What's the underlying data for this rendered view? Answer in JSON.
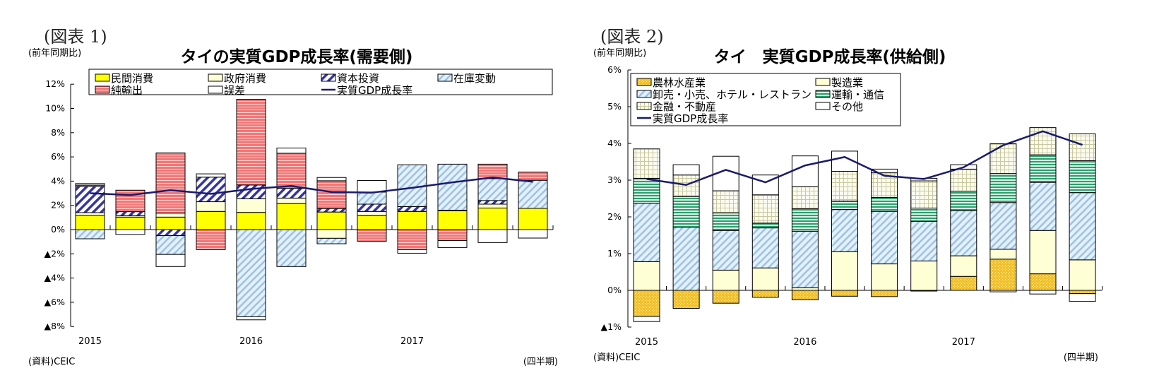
{
  "figures": [
    {
      "label": "(図表 1)"
    },
    {
      "label": "(図表 2)"
    }
  ],
  "chart_data": [
    {
      "type": "bar",
      "stacked": true,
      "title": "タイの実質GDP成長率(需要側)",
      "ylabel": "(前年同期比)",
      "xlabel": "(四半期)",
      "source": "(資料)CEIC",
      "ylim": [
        -8,
        12
      ],
      "yticks": [
        12,
        10,
        8,
        6,
        4,
        2,
        0,
        -2,
        -4,
        -6,
        -8
      ],
      "ytick_labels": [
        "12%",
        "10%",
        "8%",
        "6%",
        "4%",
        "2%",
        "0%",
        "▲2%",
        "▲4%",
        "▲6%",
        "▲8%"
      ],
      "categories": [
        "2015Q1",
        "2015Q2",
        "2015Q3",
        "2015Q4",
        "2016Q1",
        "2016Q2",
        "2016Q3",
        "2016Q4",
        "2017Q1",
        "2017Q2",
        "2017Q3",
        "2017Q4"
      ],
      "year_labels": [
        {
          "index": 0,
          "text": "2015"
        },
        {
          "index": 4,
          "text": "2016"
        },
        {
          "index": 8,
          "text": "2017"
        }
      ],
      "legend_position": "top",
      "series": [
        {
          "name": "民間消費",
          "pattern": "solid-yellow",
          "color": "#ffff00",
          "values": [
            1.17,
            1.03,
            1.03,
            1.5,
            1.42,
            2.15,
            1.45,
            1.15,
            1.5,
            1.55,
            1.78,
            1.75
          ]
        },
        {
          "name": "政府消費",
          "pattern": "solid-cream",
          "color": "#ffffd6",
          "values": [
            0.23,
            0.12,
            0.33,
            0.8,
            1.13,
            0.45,
            -0.72,
            0.35,
            0.0,
            0.05,
            0.32,
            0.0
          ]
        },
        {
          "name": "資本投資",
          "pattern": "diagonal-navy",
          "color": "#3333aa",
          "values": [
            2.16,
            0.33,
            -0.5,
            2.03,
            1.13,
            0.8,
            0.29,
            0.6,
            0.4,
            0.0,
            0.3,
            0.0
          ]
        },
        {
          "name": "在庫変動",
          "pattern": "diagonal-lightblue",
          "color": "#a9cbe8",
          "values": [
            -0.76,
            0.0,
            -1.55,
            0.0,
            -7.2,
            -3.05,
            -0.45,
            1.0,
            3.45,
            3.8,
            1.8,
            2.32
          ]
        },
        {
          "name": "純輸出",
          "pattern": "horizontal-red",
          "color": "#f08080",
          "values": [
            0.11,
            1.77,
            4.97,
            -1.65,
            7.08,
            2.9,
            2.29,
            -0.97,
            -1.65,
            -0.9,
            1.2,
            0.68
          ]
        },
        {
          "name": "誤差",
          "pattern": "solid-white",
          "color": "#ffffff",
          "values": [
            0.13,
            -0.4,
            -1.0,
            0.27,
            -0.25,
            0.43,
            0.27,
            0.95,
            -0.3,
            -0.58,
            -1.07,
            -0.7
          ]
        }
      ],
      "line": {
        "name": "実質GDP成長率",
        "color": "#1a1a6e",
        "values": [
          3.0,
          2.85,
          3.25,
          2.95,
          3.35,
          3.6,
          3.1,
          3.05,
          3.45,
          3.9,
          4.3,
          3.95
        ]
      }
    },
    {
      "type": "bar",
      "stacked": true,
      "title": "タイ　実質GDP成長率(供給側)",
      "ylabel": "(前年同期比)",
      "xlabel": "(四半期)",
      "source": "(資料)CEIC",
      "ylim": [
        -1,
        6
      ],
      "yticks": [
        6,
        5,
        4,
        3,
        2,
        1,
        0,
        -1
      ],
      "ytick_labels": [
        "6%",
        "5%",
        "4%",
        "3%",
        "2%",
        "1%",
        "0%",
        "▲1%"
      ],
      "categories": [
        "2015Q1",
        "2015Q2",
        "2015Q3",
        "2015Q4",
        "2016Q1",
        "2016Q2",
        "2016Q3",
        "2016Q4",
        "2017Q1",
        "2017Q2",
        "2017Q3",
        "2017Q4"
      ],
      "year_labels": [
        {
          "index": 0,
          "text": "2015"
        },
        {
          "index": 4,
          "text": "2016"
        },
        {
          "index": 8,
          "text": "2017"
        }
      ],
      "legend_position": "top-left",
      "series": [
        {
          "name": "農林水産業",
          "pattern": "dotted-gold",
          "color": "#f0c030",
          "values": [
            -0.71,
            -0.49,
            -0.35,
            -0.19,
            -0.26,
            -0.16,
            -0.17,
            -0.02,
            0.38,
            0.85,
            0.45,
            -0.09
          ]
        },
        {
          "name": "製造業",
          "pattern": "solid-cream",
          "color": "#ffffd0",
          "values": [
            0.78,
            0.0,
            0.55,
            0.61,
            0.07,
            1.05,
            0.72,
            0.8,
            0.56,
            0.27,
            1.18,
            0.83
          ]
        },
        {
          "name": "卸売・小売、ホテル・レストラン",
          "pattern": "diagonal-lightblue",
          "color": "#a9cbe8",
          "values": [
            1.59,
            1.72,
            1.08,
            1.09,
            1.54,
            1.15,
            1.43,
            1.08,
            1.23,
            1.27,
            1.31,
            1.83
          ]
        },
        {
          "name": "運輸・通信",
          "pattern": "horizontal-green",
          "color": "#3aaa7a",
          "values": [
            0.68,
            0.83,
            0.48,
            0.13,
            0.61,
            0.23,
            0.38,
            0.36,
            0.53,
            0.79,
            0.75,
            0.87
          ]
        },
        {
          "name": "金融・不動産",
          "pattern": "grid-beige",
          "color": "#e8e8c8",
          "values": [
            0.8,
            0.59,
            0.6,
            0.77,
            0.6,
            0.81,
            0.67,
            0.74,
            0.6,
            0.81,
            0.74,
            0.73
          ]
        },
        {
          "name": "その他",
          "pattern": "solid-white",
          "color": "#ffffff",
          "values": [
            -0.14,
            0.28,
            0.94,
            0.54,
            0.84,
            0.55,
            0.1,
            0.07,
            0.12,
            -0.04,
            -0.1,
            -0.21
          ]
        }
      ],
      "line": {
        "name": "実質GDP成長率",
        "color": "#1a1a6e",
        "values": [
          3.03,
          2.87,
          3.28,
          2.94,
          3.4,
          3.63,
          3.12,
          3.03,
          3.35,
          3.95,
          4.33,
          3.96
        ]
      }
    }
  ]
}
